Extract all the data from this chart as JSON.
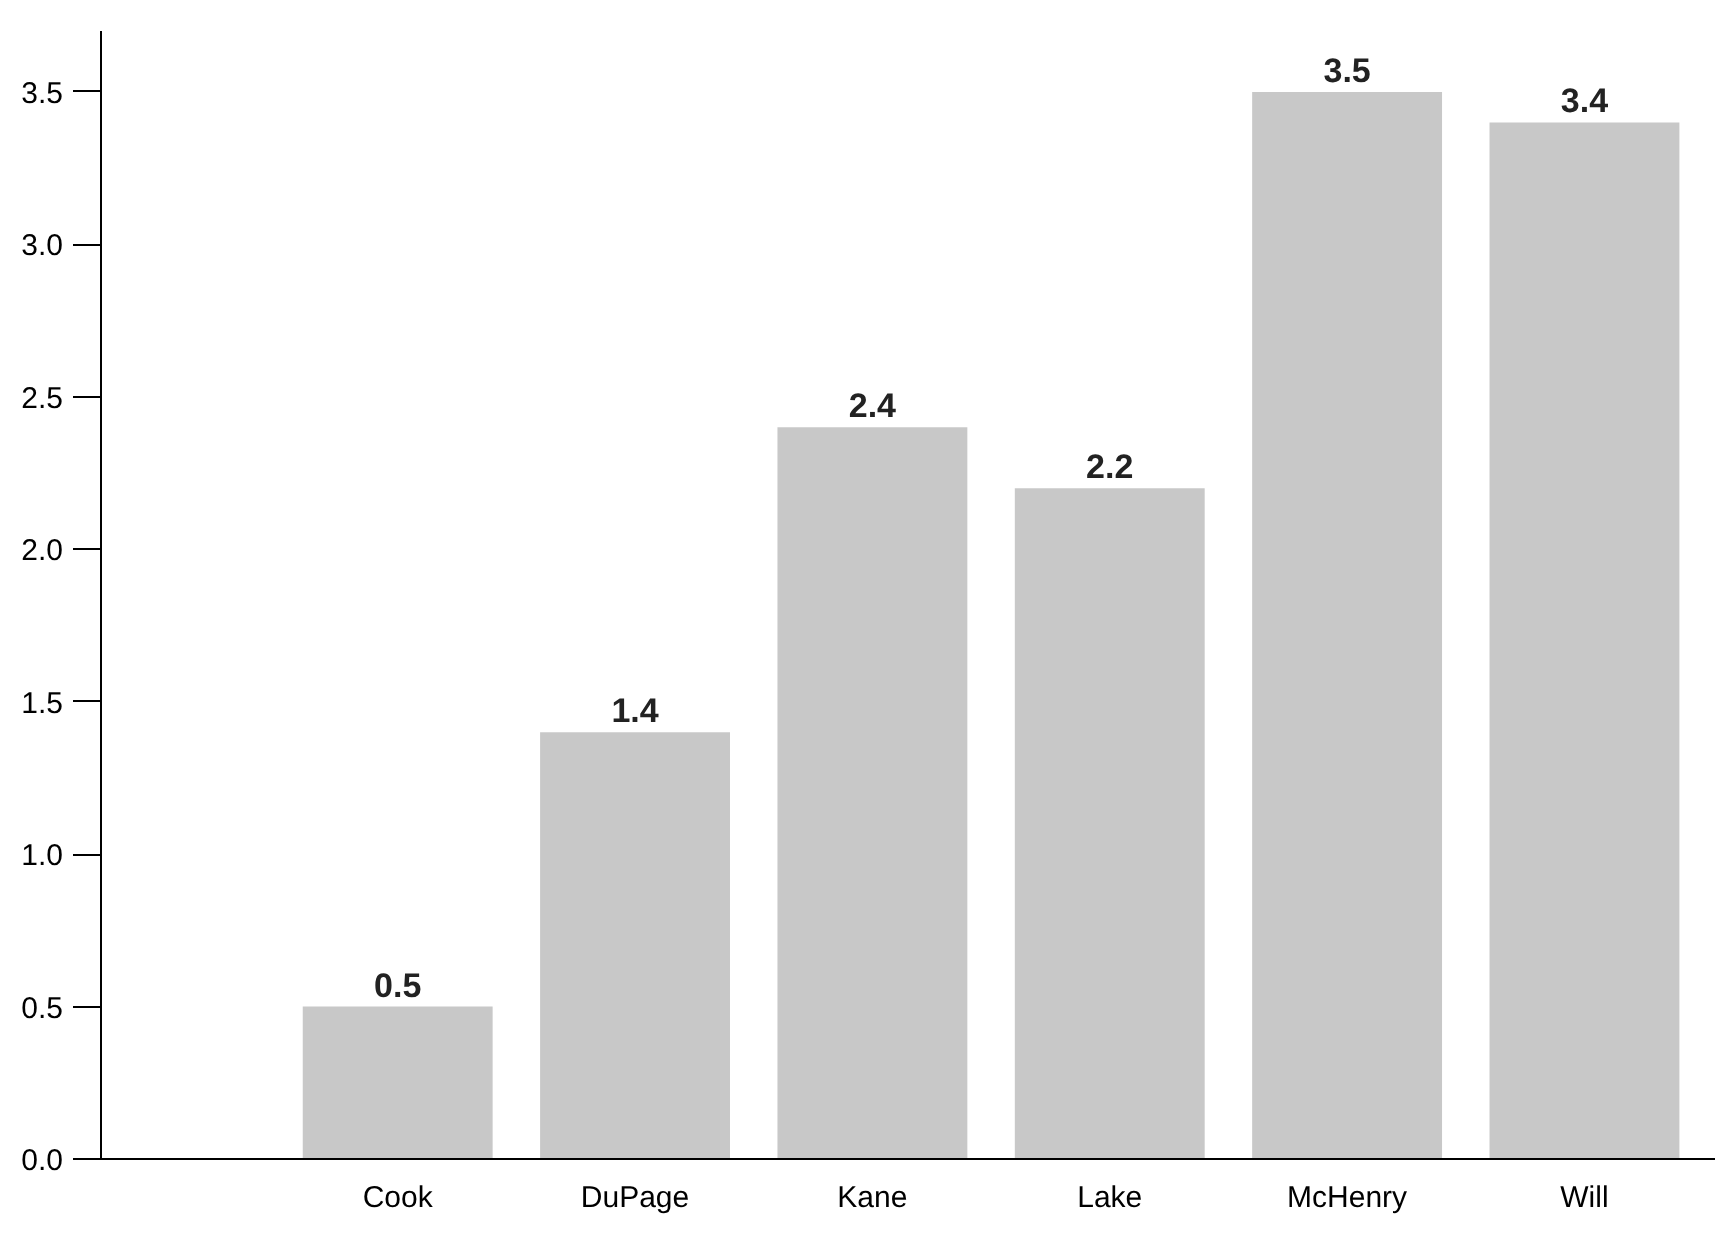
{
  "chart_data": {
    "type": "bar",
    "categories": [
      "Cook",
      "DuPage",
      "Kane",
      "Lake",
      "McHenry",
      "Will"
    ],
    "values": [
      0.5,
      1.4,
      2.4,
      2.2,
      3.5,
      3.4
    ],
    "color": "#c8c8c8",
    "ylim": [
      0,
      3.7
    ],
    "yticks": [
      {
        "value": 0,
        "label": "0.0"
      },
      {
        "value": 0.5,
        "label": "0.5"
      },
      {
        "value": 1,
        "label": "1.0"
      },
      {
        "value": 1.5,
        "label": "1.5"
      },
      {
        "value": 2,
        "label": "2.0"
      },
      {
        "value": 2.5,
        "label": "2.5"
      },
      {
        "value": 3,
        "label": "3.0"
      },
      {
        "value": 3.5,
        "label": "3.5"
      }
    ],
    "data_labels": true,
    "grid": false
  }
}
